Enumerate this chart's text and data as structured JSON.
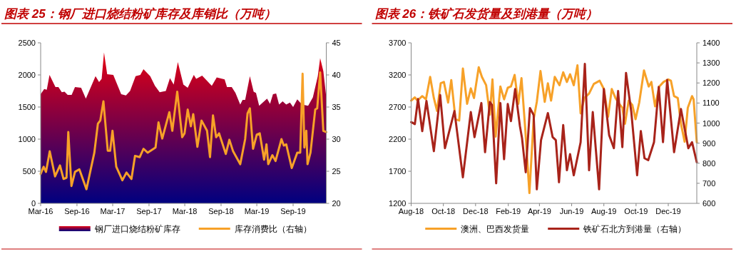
{
  "chart_data": [
    {
      "type": "area",
      "title": "图表 25：钢厂进口烧结粉矿库存及库销比（万吨）",
      "legend": "bottom",
      "xlim": [
        "2016-03-01",
        "2020-02-16"
      ],
      "xticks": [
        {
          "value": "2016-03-01",
          "label": "Mar-16"
        },
        {
          "value": "2016-09-01",
          "label": "Sep-16"
        },
        {
          "value": "2017-03-01",
          "label": "Mar-17"
        },
        {
          "value": "2017-09-01",
          "label": "Sep-17"
        },
        {
          "value": "2018-03-01",
          "label": "Mar-18"
        },
        {
          "value": "2018-09-01",
          "label": "Sep-18"
        },
        {
          "value": "2019-03-01",
          "label": "Mar-19"
        },
        {
          "value": "2019-09-01",
          "label": "Sep-19"
        }
      ],
      "ylim": [
        0,
        2500
      ],
      "yticks": [
        0,
        500,
        1000,
        1500,
        2000,
        2500
      ],
      "y2lim": [
        20,
        45
      ],
      "y2ticks": [
        20,
        25,
        30,
        35,
        40,
        45
      ],
      "series": [
        {
          "name": "钢厂进口烧结粉矿库存",
          "color": "#e60012",
          "x": [
            "2016-03-01",
            "2016-03-19",
            "2016-04-01",
            "2016-04-15",
            "2016-05-15",
            "2016-05-30",
            "2016-06-16",
            "2016-06-30",
            "2016-07-16",
            "2016-08-05",
            "2016-08-22",
            "2016-09-22",
            "2016-10-16",
            "2016-12-04",
            "2016-12-22",
            "2017-01-04",
            "2017-01-16",
            "2017-02-01",
            "2017-03-04",
            "2017-04-13",
            "2017-05-07",
            "2017-05-28",
            "2017-06-25",
            "2017-07-19",
            "2017-08-04",
            "2017-09-07",
            "2017-10-01",
            "2017-10-25",
            "2017-11-25",
            "2017-12-16",
            "2018-01-04",
            "2018-01-25",
            "2018-02-22",
            "2018-03-16",
            "2018-04-16",
            "2018-04-28",
            "2018-05-28",
            "2018-07-16",
            "2018-08-10",
            "2018-09-19",
            "2018-10-01",
            "2018-10-25",
            "2018-11-13",
            "2018-12-07",
            "2018-12-19",
            "2019-01-01",
            "2019-01-25",
            "2019-02-13",
            "2019-02-25",
            "2019-03-13",
            "2019-04-07",
            "2019-04-22",
            "2019-05-07",
            "2019-05-22",
            "2019-06-07",
            "2019-06-22",
            "2019-07-10",
            "2019-07-28",
            "2019-08-16",
            "2019-09-01",
            "2019-09-22",
            "2019-10-16",
            "2019-11-16",
            "2019-12-10",
            "2020-01-04",
            "2020-01-16",
            "2020-02-01",
            "2020-02-16"
          ],
          "values": [
            1700,
            1780,
            1770,
            2000,
            1810,
            1810,
            1730,
            1740,
            1690,
            1690,
            1810,
            1800,
            1630,
            1980,
            1890,
            1940,
            2350,
            2010,
            2000,
            1700,
            1680,
            1750,
            1980,
            2000,
            2090,
            1980,
            1830,
            1730,
            1750,
            1950,
            1850,
            2200,
            1850,
            1800,
            2000,
            1940,
            1990,
            1830,
            1960,
            1930,
            1810,
            1810,
            1720,
            1540,
            1610,
            1610,
            1980,
            1740,
            1720,
            1520,
            1590,
            1630,
            1550,
            1700,
            1710,
            1540,
            1590,
            1540,
            1570,
            1500,
            1620,
            1540,
            1520,
            1650,
            1980,
            2260,
            2060,
            1650
          ]
        },
        {
          "name": "库存消费比（右轴）",
          "type": "line",
          "axis": "y2",
          "color": "#f7a128",
          "x": [
            "2016-03-01",
            "2016-03-16",
            "2016-03-28",
            "2016-04-16",
            "2016-05-13",
            "2016-06-07",
            "2016-06-25",
            "2016-07-10",
            "2016-07-19",
            "2016-08-04",
            "2016-08-22",
            "2016-09-13",
            "2016-10-19",
            "2016-11-28",
            "2016-12-16",
            "2016-12-28",
            "2017-01-13",
            "2017-02-04",
            "2017-02-16",
            "2017-02-28",
            "2017-03-19",
            "2017-04-19",
            "2017-05-10",
            "2017-06-04",
            "2017-06-22",
            "2017-07-16",
            "2017-08-04",
            "2017-08-25",
            "2017-10-04",
            "2017-10-19",
            "2017-11-07",
            "2017-12-13",
            "2017-12-28",
            "2018-01-22",
            "2018-02-16",
            "2018-02-28",
            "2018-03-16",
            "2018-04-01",
            "2018-04-13",
            "2018-05-04",
            "2018-05-25",
            "2018-06-22",
            "2018-07-07",
            "2018-07-22",
            "2018-08-07",
            "2018-08-22",
            "2018-09-25",
            "2018-10-13",
            "2018-11-01",
            "2018-12-07",
            "2019-01-01",
            "2019-01-13",
            "2019-01-25",
            "2019-02-10",
            "2019-03-01",
            "2019-03-16",
            "2019-04-07",
            "2019-04-19",
            "2019-04-28",
            "2019-05-19",
            "2019-06-04",
            "2019-07-04",
            "2019-07-16",
            "2019-07-28",
            "2019-08-25",
            "2019-09-22",
            "2019-10-07",
            "2019-10-19",
            "2019-10-28",
            "2019-11-07",
            "2019-11-13",
            "2019-11-28",
            "2019-12-22",
            "2020-01-01",
            "2020-01-16",
            "2020-02-01",
            "2020-02-16"
          ],
          "values": [
            24.6,
            25.7,
            24.9,
            28.1,
            24.2,
            25.9,
            23.8,
            24.0,
            31.1,
            22.7,
            24.9,
            25.3,
            22.2,
            27.9,
            32.4,
            32.9,
            35.9,
            28.2,
            28.2,
            31.3,
            25.7,
            23.6,
            24.8,
            23.8,
            27.4,
            27.2,
            28.5,
            27.9,
            28.7,
            32.6,
            30.1,
            34.2,
            31.3,
            37.4,
            30.3,
            30.9,
            34.6,
            32.0,
            33.9,
            28.8,
            32.9,
            31.3,
            27.2,
            33.7,
            30.3,
            30.9,
            27.7,
            29.9,
            28.1,
            26.1,
            30.0,
            34.0,
            34.8,
            28.5,
            30.7,
            30.9,
            26.8,
            29.2,
            26.1,
            27.5,
            26.6,
            30.0,
            29.0,
            29.2,
            25.5,
            27.9,
            27.9,
            40.2,
            28.7,
            31.3,
            26.1,
            27.9,
            34.6,
            34.8,
            40.4,
            31.3,
            31.1
          ]
        }
      ]
    },
    {
      "type": "line",
      "title": "图表 26：铁矿石发货量及到港量（万吨）",
      "legend": "bottom",
      "xlim": [
        "2018-08-01",
        "2020-01-24"
      ],
      "xticks": [
        {
          "value": "2018-08-01",
          "label": "Aug-18"
        },
        {
          "value": "2018-10-01",
          "label": "Oct-18"
        },
        {
          "value": "2018-12-01",
          "label": "Dec-18"
        },
        {
          "value": "2019-02-01",
          "label": "Feb-19"
        },
        {
          "value": "2019-04-01",
          "label": "Apr-19"
        },
        {
          "value": "2019-06-01",
          "label": "Jun-19"
        },
        {
          "value": "2019-08-01",
          "label": "Aug-19"
        },
        {
          "value": "2019-10-01",
          "label": "Oct-19"
        },
        {
          "value": "2019-12-01",
          "label": "Dec-19"
        }
      ],
      "ylim": [
        1200,
        3700
      ],
      "yticks": [
        1200,
        1700,
        2200,
        2700,
        3200,
        3700
      ],
      "y2lim": [
        600,
        1400
      ],
      "y2ticks": [
        600,
        700,
        800,
        900,
        1000,
        1100,
        1200,
        1300,
        1400
      ],
      "series": [
        {
          "name": "澳洲、巴西发货量",
          "color": "#f7a128",
          "x": [
            "2018-08-01",
            "2018-08-08",
            "2018-08-13",
            "2018-08-22",
            "2018-08-29",
            "2018-09-06",
            "2018-09-13",
            "2018-09-19",
            "2018-09-26",
            "2018-10-02",
            "2018-10-10",
            "2018-10-16",
            "2018-10-24",
            "2018-10-31",
            "2018-11-07",
            "2018-11-15",
            "2018-11-22",
            "2018-11-28",
            "2018-12-07",
            "2018-12-13",
            "2018-12-21",
            "2018-12-28",
            "2019-01-02",
            "2019-01-08",
            "2019-01-17",
            "2019-01-24",
            "2019-01-31",
            "2019-02-06",
            "2019-02-13",
            "2019-02-20",
            "2019-02-26",
            "2019-03-05",
            "2019-03-13",
            "2019-03-21",
            "2019-03-27",
            "2019-04-03",
            "2019-04-11",
            "2019-04-17",
            "2019-04-23",
            "2019-04-30",
            "2019-05-09",
            "2019-05-16",
            "2019-05-23",
            "2019-05-29",
            "2019-06-05",
            "2019-06-12",
            "2019-06-18",
            "2019-06-25",
            "2019-07-04",
            "2019-07-13",
            "2019-07-24",
            "2019-08-01",
            "2019-08-09",
            "2019-08-16",
            "2019-08-23",
            "2019-08-30",
            "2019-09-05",
            "2019-09-10",
            "2019-09-17",
            "2019-09-24",
            "2019-09-30",
            "2019-10-07",
            "2019-10-16",
            "2019-10-25",
            "2019-10-30",
            "2019-11-06",
            "2019-11-14",
            "2019-11-22",
            "2019-12-01",
            "2019-12-06",
            "2019-12-12",
            "2019-12-19",
            "2019-12-25",
            "2020-01-01",
            "2020-01-07",
            "2020-01-15",
            "2020-01-18",
            "2020-01-24"
          ],
          "values": [
            2800,
            2850,
            2800,
            2870,
            2820,
            3170,
            2840,
            2640,
            3070,
            3090,
            2770,
            3120,
            2510,
            2490,
            3300,
            2750,
            2990,
            2840,
            3320,
            3170,
            3040,
            2580,
            3130,
            2240,
            3020,
            2820,
            3000,
            3020,
            3200,
            2750,
            3150,
            2370,
            1360,
            2510,
            2780,
            3260,
            2780,
            3070,
            2800,
            3170,
            3040,
            3240,
            3090,
            3210,
            3040,
            3350,
            2600,
            2840,
            2910,
            3060,
            3110,
            2980,
            2550,
            2980,
            2840,
            2750,
            2690,
            2440,
            2800,
            2730,
            2510,
            2770,
            3270,
            3020,
            3090,
            2710,
            3020,
            3090,
            3130,
            3110,
            2870,
            2840,
            2440,
            2160,
            2690,
            2870,
            2820,
            2150
          ]
        },
        {
          "name": "铁矿石北方到港量（右轴）",
          "color": "#a8231a",
          "axis": "y2",
          "x": [
            "2018-08-01",
            "2018-08-08",
            "2018-08-14",
            "2018-08-22",
            "2018-08-30",
            "2018-09-13",
            "2018-09-25",
            "2018-10-04",
            "2018-10-22",
            "2018-11-07",
            "2018-11-22",
            "2018-11-29",
            "2018-12-12",
            "2018-12-19",
            "2018-12-28",
            "2019-01-01",
            "2019-01-09",
            "2019-01-17",
            "2019-01-24",
            "2019-01-31",
            "2019-02-06",
            "2019-02-14",
            "2019-02-23",
            "2019-02-27",
            "2019-03-06",
            "2019-03-14",
            "2019-03-21",
            "2019-03-27",
            "2019-04-04",
            "2019-04-17",
            "2019-04-26",
            "2019-05-02",
            "2019-05-08",
            "2019-05-16",
            "2019-05-23",
            "2019-05-29",
            "2019-06-05",
            "2019-06-18",
            "2019-06-26",
            "2019-07-04",
            "2019-07-11",
            "2019-07-23",
            "2019-08-01",
            "2019-08-11",
            "2019-08-20",
            "2019-08-28",
            "2019-09-05",
            "2019-09-12",
            "2019-09-22",
            "2019-10-03",
            "2019-10-10",
            "2019-10-17",
            "2019-10-24",
            "2019-11-04",
            "2019-11-13",
            "2019-11-21",
            "2019-11-29",
            "2019-12-12",
            "2019-12-25",
            "2020-01-08",
            "2020-01-15",
            "2020-01-24"
          ],
          "values": [
            1005,
            995,
            1120,
            960,
            1110,
            860,
            1140,
            875,
            1060,
            730,
            1055,
            930,
            1100,
            855,
            1105,
            1090,
            700,
            1100,
            820,
            1095,
            1010,
            1170,
            985,
            925,
            755,
            1075,
            1040,
            670,
            915,
            1050,
            930,
            915,
            705,
            990,
            765,
            845,
            740,
            905,
            1295,
            765,
            1055,
            670,
            1170,
            940,
            875,
            1160,
            880,
            1250,
            1055,
            740,
            960,
            825,
            815,
            905,
            1180,
            905,
            1215,
            855,
            1070,
            875,
            905,
            805
          ]
        }
      ]
    }
  ]
}
